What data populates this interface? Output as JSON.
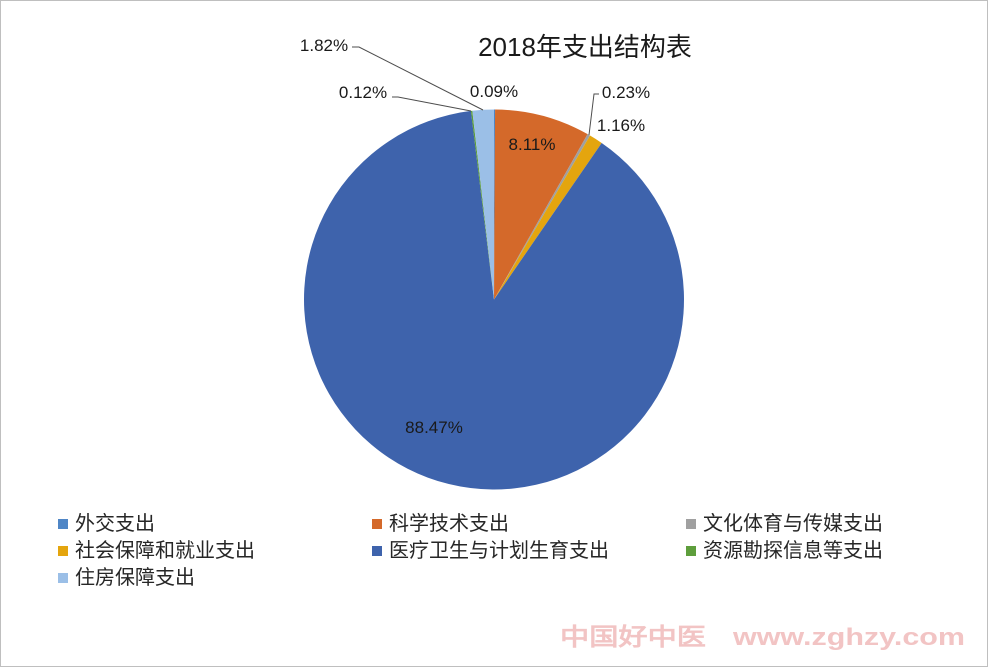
{
  "chart_data": {
    "type": "pie",
    "title": "2018年支出结构表",
    "categories": [
      "外交支出",
      "科学技术支出",
      "文化体育与传媒支出",
      "社会保障和就业支出",
      "医疗卫生与计划生育支出",
      "资源勘探信息等支出",
      "住房保障支出"
    ],
    "values": [
      0.09,
      8.11,
      0.23,
      1.16,
      88.47,
      0.12,
      1.82
    ],
    "data_labels": [
      "0.09%",
      "8.11%",
      "0.23%",
      "1.16%",
      "88.47%",
      "0.12%",
      "1.82%"
    ],
    "colors": [
      "#4F86C6",
      "#D4692A",
      "#A0A0A0",
      "#E4A50E",
      "#3E63AC",
      "#5E9E3C",
      "#9BBFE7"
    ],
    "legend_position": "bottom"
  },
  "watermark": {
    "brand": "中国好中医",
    "url": "www.zghzy.com",
    "color": "#F2C4C4"
  }
}
